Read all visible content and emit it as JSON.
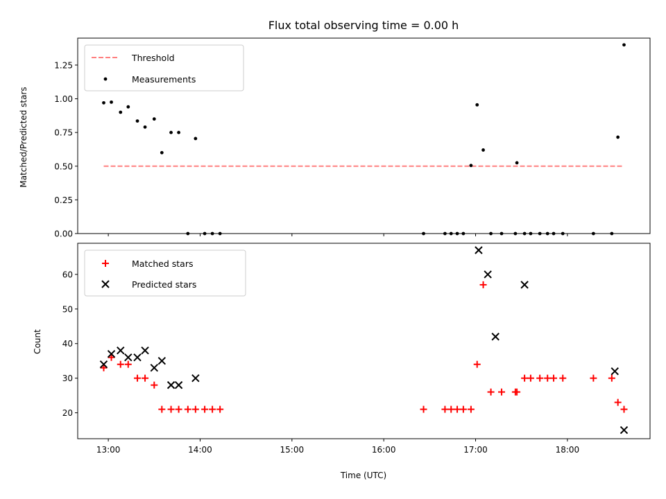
{
  "chart_data": [
    {
      "type": "scatter",
      "title": "Flux total observing time = 0.00 h",
      "ylabel": "Matched/Predicted stars",
      "xlabel": "",
      "xlim": [
        "12:40",
        "18:54"
      ],
      "ylim": [
        0,
        1.45
      ],
      "yticks": [
        0.0,
        0.25,
        0.5,
        0.75,
        1.0,
        1.25
      ],
      "ytick_labels": [
        "0.00",
        "0.25",
        "0.50",
        "0.75",
        "1.00",
        "1.25"
      ],
      "xticks": [
        "13:00",
        "14:00",
        "15:00",
        "16:00",
        "17:00",
        "18:00"
      ],
      "show_xtick_labels": false,
      "legend": {
        "position": "top-left",
        "entries": [
          "Threshold",
          "Measurements"
        ]
      },
      "threshold": {
        "name": "Threshold",
        "value": 0.5,
        "x_start": "12:57",
        "x_end": "18:37",
        "color": "#ff7f7f",
        "style": "dashed"
      },
      "series": [
        {
          "name": "Measurements",
          "marker": "dot",
          "color": "#000000",
          "x": [
            "12:57",
            "13:02",
            "13:08",
            "13:13",
            "13:19",
            "13:24",
            "13:30",
            "13:35",
            "13:41",
            "13:46",
            "13:52",
            "13:57",
            "14:03",
            "14:08",
            "14:13",
            "16:26",
            "16:40",
            "16:44",
            "16:48",
            "16:52",
            "16:57",
            "17:01",
            "17:05",
            "17:10",
            "17:17",
            "17:26",
            "17:27",
            "17:32",
            "17:36",
            "17:42",
            "17:47",
            "17:51",
            "17:57",
            "18:17",
            "18:29",
            "18:33",
            "18:37"
          ],
          "y": [
            0.97,
            0.975,
            0.9,
            0.94,
            0.835,
            0.79,
            0.85,
            0.6,
            0.75,
            0.75,
            0.0,
            0.705,
            0.0,
            0.0,
            0.0,
            0.0,
            0.0,
            0.0,
            0.0,
            0.0,
            0.505,
            0.955,
            0.62,
            0.0,
            0.0,
            0.0,
            0.525,
            0.0,
            0.0,
            0.0,
            0.0,
            0.0,
            0.0,
            0.0,
            0.0,
            0.715,
            1.4
          ]
        }
      ]
    },
    {
      "type": "scatter",
      "title": "",
      "ylabel": "Count",
      "xlabel": "Time (UTC)",
      "xlim": [
        "12:40",
        "18:54"
      ],
      "ylim": [
        12.5,
        69
      ],
      "yticks": [
        20,
        30,
        40,
        50,
        60
      ],
      "ytick_labels": [
        "20",
        "30",
        "40",
        "50",
        "60"
      ],
      "xticks": [
        "13:00",
        "14:00",
        "15:00",
        "16:00",
        "17:00",
        "18:00"
      ],
      "xtick_labels": [
        "13:00",
        "14:00",
        "15:00",
        "16:00",
        "17:00",
        "18:00"
      ],
      "legend": {
        "position": "top-left",
        "entries": [
          "Matched stars",
          "Predicted stars"
        ]
      },
      "series": [
        {
          "name": "Matched stars",
          "marker": "plus",
          "color": "#ff0000",
          "x": [
            "12:57",
            "13:02",
            "13:08",
            "13:13",
            "13:19",
            "13:24",
            "13:30",
            "13:35",
            "13:41",
            "13:46",
            "13:52",
            "13:57",
            "14:03",
            "14:08",
            "14:13",
            "16:26",
            "16:40",
            "16:44",
            "16:48",
            "16:52",
            "16:57",
            "17:01",
            "17:05",
            "17:10",
            "17:17",
            "17:26",
            "17:27",
            "17:32",
            "17:36",
            "17:42",
            "17:47",
            "17:51",
            "17:57",
            "18:17",
            "18:29",
            "18:33",
            "18:37"
          ],
          "y": [
            33,
            36,
            34,
            34,
            30,
            30,
            28,
            21,
            21,
            21,
            21,
            21,
            21,
            21,
            21,
            21,
            21,
            21,
            21,
            21,
            21,
            34,
            57,
            26,
            26,
            26,
            26,
            30,
            30,
            30,
            30,
            30,
            30,
            30,
            30,
            23,
            21
          ]
        },
        {
          "name": "Predicted stars",
          "marker": "x",
          "color": "#000000",
          "x": [
            "12:57",
            "13:02",
            "13:08",
            "13:13",
            "13:19",
            "13:24",
            "13:30",
            "13:35",
            "13:41",
            "13:46",
            "13:57",
            "17:02",
            "17:08",
            "17:13",
            "17:32",
            "18:31",
            "18:37"
          ],
          "y": [
            34,
            37,
            38,
            36,
            36,
            38,
            33,
            35,
            28,
            28,
            30,
            67,
            60,
            42,
            57,
            32,
            15
          ]
        }
      ]
    }
  ]
}
